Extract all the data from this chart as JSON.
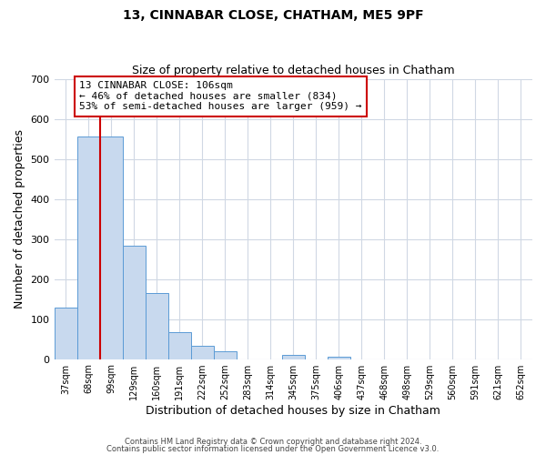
{
  "title": "13, CINNABAR CLOSE, CHATHAM, ME5 9PF",
  "subtitle": "Size of property relative to detached houses in Chatham",
  "xlabel": "Distribution of detached houses by size in Chatham",
  "ylabel": "Number of detached properties",
  "bin_labels": [
    "37sqm",
    "68sqm",
    "99sqm",
    "129sqm",
    "160sqm",
    "191sqm",
    "222sqm",
    "252sqm",
    "283sqm",
    "314sqm",
    "345sqm",
    "375sqm",
    "406sqm",
    "437sqm",
    "468sqm",
    "498sqm",
    "529sqm",
    "560sqm",
    "591sqm",
    "621sqm",
    "652sqm"
  ],
  "bar_values": [
    128,
    557,
    557,
    284,
    165,
    68,
    33,
    20,
    0,
    0,
    10,
    0,
    5,
    0,
    0,
    0,
    0,
    0,
    0,
    0,
    0
  ],
  "bar_color": "#c8d9ee",
  "bar_edge_color": "#5b9bd5",
  "vline_x": 1.5,
  "vline_color": "#cc0000",
  "annotation_text": "13 CINNABAR CLOSE: 106sqm\n← 46% of detached houses are smaller (834)\n53% of semi-detached houses are larger (959) →",
  "annotation_box_color": "#ffffff",
  "annotation_box_edge": "#cc0000",
  "annotation_fontsize": 8.0,
  "ylim": [
    0,
    700
  ],
  "yticks": [
    0,
    100,
    200,
    300,
    400,
    500,
    600,
    700
  ],
  "footer1": "Contains HM Land Registry data © Crown copyright and database right 2024.",
  "footer2": "Contains public sector information licensed under the Open Government Licence v3.0.",
  "bg_color": "#ffffff",
  "grid_color": "#d0d8e4"
}
